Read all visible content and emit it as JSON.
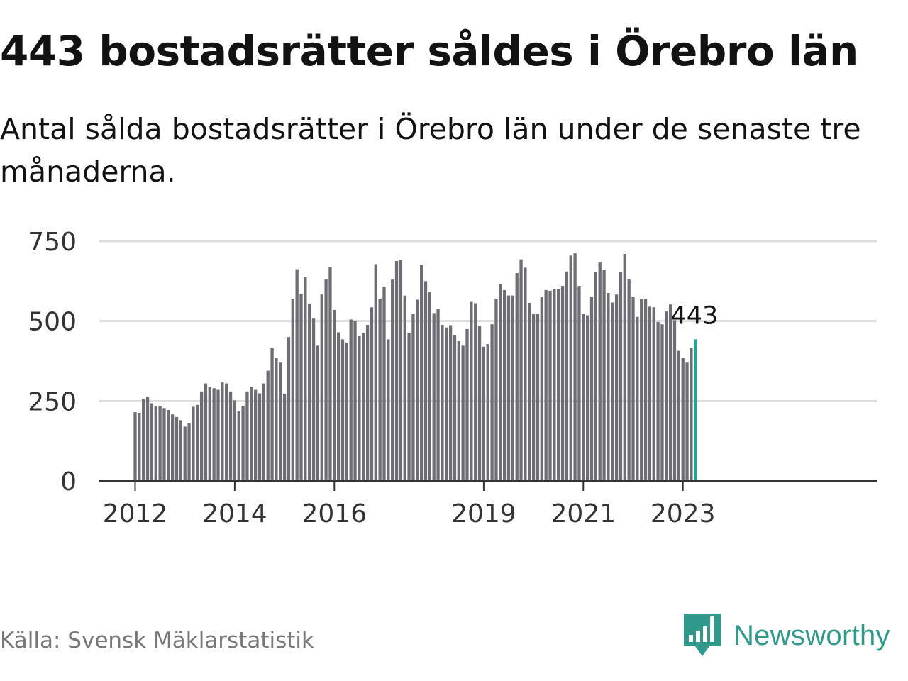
{
  "title": "443 bostadsrätter såldes i Örebro län",
  "subtitle": "Antal sålda bostadsrätter i Örebro län under de senaste tre månaderna.",
  "source": "Källa: Svensk Mäklarstatistik",
  "logo": {
    "name": "Newsworthy",
    "icon": "newsworthy-logo-icon"
  },
  "colors": {
    "bar": "#6e6d73",
    "highlight": "#21a395",
    "grid": "#dddddd",
    "axis": "#333333",
    "brand": "#2f9a8c"
  },
  "chart_data": {
    "type": "bar",
    "title": "443 bostadsrätter såldes i Örebro län",
    "xlabel": "",
    "ylabel": "",
    "ylim": [
      0,
      750
    ],
    "yticks": [
      0,
      250,
      500,
      750
    ],
    "yticks_labels": [
      "0",
      "250",
      "500",
      "750"
    ],
    "grid": true,
    "start": "2012-01",
    "xticks": [
      {
        "label": "2012",
        "month": "2012-01"
      },
      {
        "label": "2014",
        "month": "2014-01"
      },
      {
        "label": "2016",
        "month": "2016-01"
      },
      {
        "label": "2019",
        "month": "2019-01"
      },
      {
        "label": "2021",
        "month": "2021-01"
      },
      {
        "label": "2023",
        "month": "2023-01"
      }
    ],
    "highlight_label": "443",
    "values": [
      215,
      213,
      255,
      263,
      243,
      235,
      233,
      228,
      222,
      208,
      200,
      190,
      170,
      180,
      232,
      238,
      280,
      305,
      293,
      290,
      285,
      308,
      305,
      280,
      252,
      218,
      235,
      280,
      295,
      285,
      274,
      305,
      345,
      415,
      385,
      370,
      273,
      450,
      570,
      662,
      585,
      637,
      555,
      510,
      423,
      583,
      630,
      670,
      535,
      465,
      443,
      433,
      505,
      500,
      455,
      463,
      488,
      543,
      678,
      570,
      608,
      443,
      630,
      688,
      692,
      580,
      463,
      523,
      567,
      675,
      625,
      590,
      525,
      538,
      488,
      480,
      487,
      457,
      438,
      423,
      475,
      560,
      556,
      485,
      420,
      428,
      490,
      570,
      617,
      597,
      580,
      580,
      650,
      693,
      667,
      557,
      522,
      523,
      577,
      597,
      595,
      600,
      600,
      610,
      655,
      705,
      712,
      610,
      522,
      518,
      575,
      653,
      683,
      660,
      588,
      558,
      583,
      653,
      710,
      630,
      575,
      513,
      568,
      568,
      545,
      543,
      497,
      490,
      530,
      552,
      503,
      407,
      385,
      370,
      415,
      443
    ]
  }
}
